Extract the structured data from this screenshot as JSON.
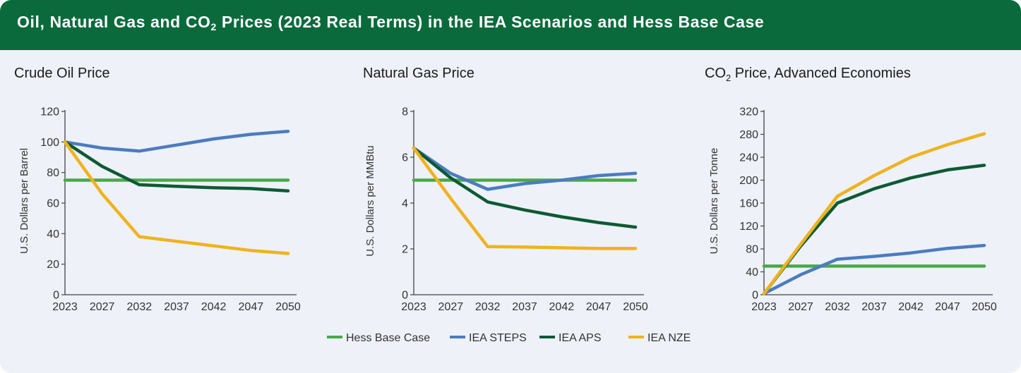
{
  "banner": {
    "title_pre": "Oil, Natural Gas and CO",
    "title_sub": "2",
    "title_post": " Prices (2023 Real Terms) in the IEA Scenarios and Hess Base Case"
  },
  "colors": {
    "banner": "#0a6a3c",
    "background": "#eef1f8",
    "hess": "#4aa84a",
    "steps": "#4a7cc0",
    "aps": "#0d5a33",
    "nze": "#f0b21e"
  },
  "legend": [
    {
      "key": "hess",
      "label": "Hess Base Case"
    },
    {
      "key": "steps",
      "label": "IEA STEPS"
    },
    {
      "key": "aps",
      "label": "IEA APS"
    },
    {
      "key": "nze",
      "label": "IEA NZE"
    }
  ],
  "chart_data": [
    {
      "type": "line",
      "title": "Crude Oil Price",
      "xlabel": "",
      "ylabel": "U.S. Dollars per Barrel",
      "x": [
        2023,
        2027,
        2032,
        2037,
        2042,
        2047,
        2050
      ],
      "xticks": [
        "2023",
        "2027",
        "2032",
        "2037",
        "2042",
        "2047",
        "2050"
      ],
      "yticks": [
        "0",
        "20",
        "40",
        "60",
        "80",
        "100",
        "120"
      ],
      "ylim": [
        0,
        120
      ],
      "grid": false,
      "legend": "bottom",
      "series": [
        {
          "key": "hess",
          "name": "Hess Base Case",
          "values": [
            75,
            75,
            75,
            75,
            75,
            75,
            75
          ]
        },
        {
          "key": "steps",
          "name": "IEA STEPS",
          "values": [
            100,
            96,
            94,
            98,
            102,
            105,
            107
          ]
        },
        {
          "key": "aps",
          "name": "IEA APS",
          "values": [
            100,
            84,
            72,
            71,
            70,
            69.5,
            68
          ]
        },
        {
          "key": "nze",
          "name": "IEA NZE",
          "values": [
            100,
            66,
            38,
            35,
            32,
            29,
            27
          ]
        }
      ]
    },
    {
      "type": "line",
      "title": "Natural Gas Price",
      "xlabel": "",
      "ylabel": "U.S. Dollars per MMBtu",
      "x": [
        2023,
        2027,
        2032,
        2037,
        2042,
        2047,
        2050
      ],
      "xticks": [
        "2023",
        "2027",
        "2032",
        "2037",
        "2042",
        "2047",
        "2050"
      ],
      "yticks": [
        "0",
        "2",
        "4",
        "6",
        "8"
      ],
      "ylim": [
        0,
        8
      ],
      "grid": false,
      "legend": "bottom",
      "series": [
        {
          "key": "hess",
          "name": "Hess Base Case",
          "values": [
            5,
            5,
            5,
            5,
            5,
            5,
            5
          ]
        },
        {
          "key": "steps",
          "name": "IEA STEPS",
          "values": [
            6.4,
            5.3,
            4.6,
            4.85,
            5.0,
            5.2,
            5.3
          ]
        },
        {
          "key": "aps",
          "name": "IEA APS",
          "values": [
            6.4,
            5.1,
            4.05,
            3.7,
            3.4,
            3.15,
            2.95
          ]
        },
        {
          "key": "nze",
          "name": "IEA NZE",
          "values": [
            6.4,
            4.2,
            2.1,
            2.08,
            2.05,
            2.02,
            2.02
          ]
        }
      ]
    },
    {
      "type": "line",
      "title_pre": "CO",
      "title_sub": "2",
      "title_post": " Price, Advanced Economies",
      "xlabel": "",
      "ylabel": "U.S. Dollars per Tonne",
      "x": [
        2023,
        2027,
        2032,
        2037,
        2042,
        2047,
        2050
      ],
      "xticks": [
        "2023",
        "2027",
        "2032",
        "2037",
        "2042",
        "2047",
        "2050"
      ],
      "yticks": [
        "0",
        "40",
        "80",
        "120",
        "160",
        "200",
        "240",
        "280",
        "320"
      ],
      "ylim": [
        0,
        320
      ],
      "grid": false,
      "legend": "bottom",
      "series": [
        {
          "key": "hess",
          "name": "Hess Base Case",
          "values": [
            50,
            50,
            50,
            50,
            50,
            50,
            50
          ]
        },
        {
          "key": "steps",
          "name": "IEA STEPS",
          "values": [
            2,
            35,
            62,
            67,
            73,
            81,
            86
          ]
        },
        {
          "key": "aps",
          "name": "IEA APS",
          "values": [
            2,
            85,
            160,
            185,
            204,
            218,
            226
          ]
        },
        {
          "key": "nze",
          "name": "IEA NZE",
          "values": [
            2,
            88,
            172,
            208,
            240,
            262,
            281
          ]
        }
      ]
    }
  ]
}
